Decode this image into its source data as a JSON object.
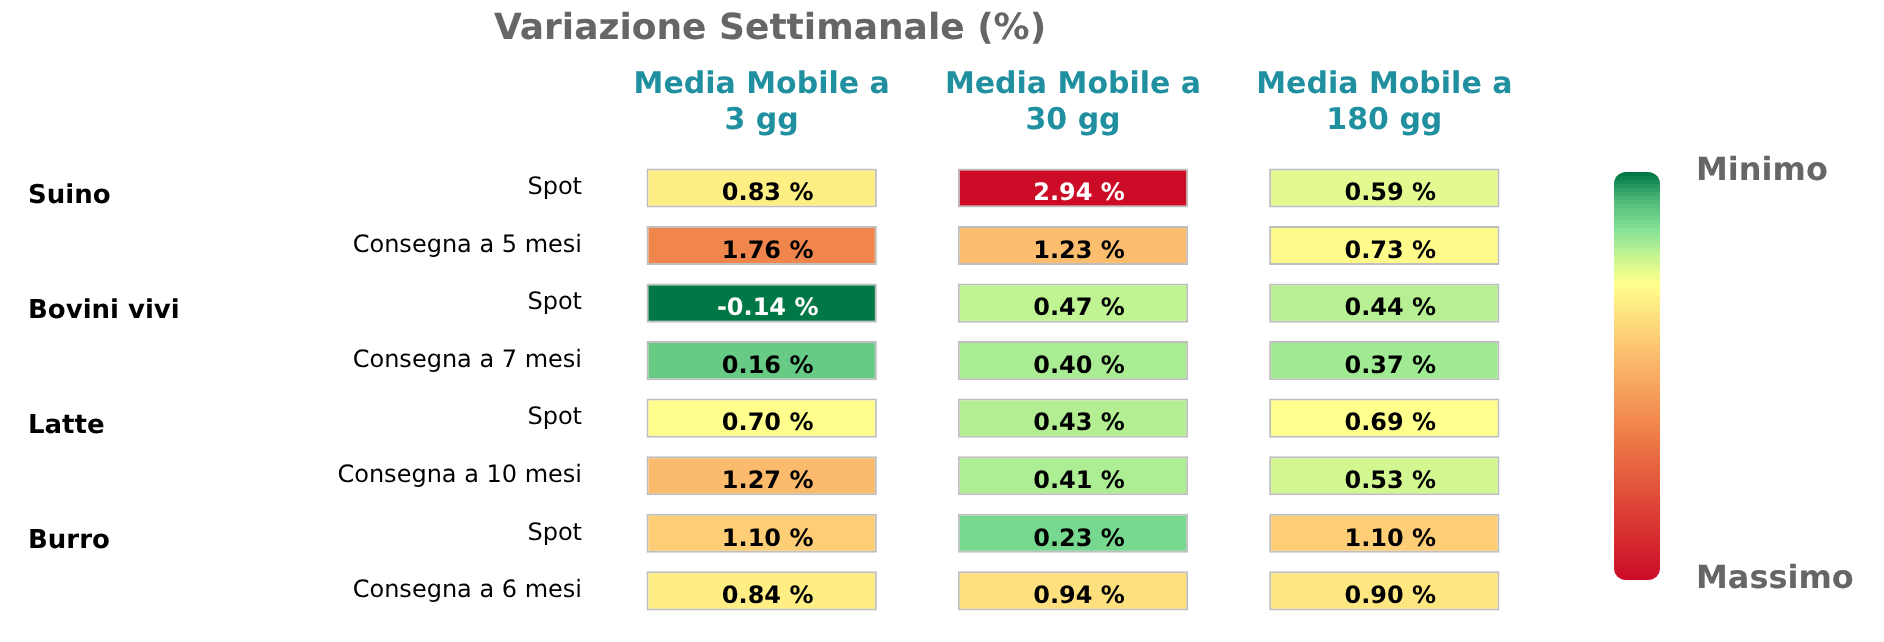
{
  "chart_data": {
    "type": "heatmap",
    "title": "Variazione Settimanale (%)",
    "categories": [
      "Media Mobile a 3 gg",
      "Media Mobile a 30 gg",
      "Media Mobile a 180 gg"
    ],
    "y_categories": [
      "Spot",
      "Consegna a 5 mesi",
      "Spot",
      "Consegna a 7 mesi",
      "Spot",
      "Consegna a 10 mesi",
      "Spot",
      "Consegna a 6 mesi"
    ],
    "y2_categories": [
      "Suino",
      null,
      "Bovini vivi",
      null,
      "Latte",
      null,
      "Burro",
      null
    ],
    "cells": [
      [
        0.83,
        2.94,
        0.59
      ],
      [
        1.76,
        1.23,
        0.73
      ],
      [
        -0.14,
        0.47,
        0.44
      ],
      [
        0.16,
        0.4,
        0.37
      ],
      [
        0.7,
        0.43,
        0.69
      ],
      [
        1.27,
        0.41,
        0.53
      ],
      [
        1.1,
        0.23,
        1.1
      ],
      [
        0.84,
        0.94,
        0.9
      ]
    ],
    "cell_labels": [
      [
        "0.83 %",
        "2.94 %",
        "0.59 %"
      ],
      [
        "1.76 %",
        "1.23 %",
        "0.73 %"
      ],
      [
        "-0.14 %",
        "0.47 %",
        "0.44 %"
      ],
      [
        "0.16 %",
        "0.40 %",
        "0.37 %"
      ],
      [
        "0.70 %",
        "0.43 %",
        "0.69 %"
      ],
      [
        "1.27 %",
        "0.41 %",
        "0.53 %"
      ],
      [
        "1.10 %",
        "0.23 %",
        "1.10 %"
      ],
      [
        "0.84 %",
        "0.94 %",
        "0.90 %"
      ]
    ],
    "clim": [
      -0.14,
      2.94
    ],
    "cticks": [
      {
        "value": -0.14,
        "label": "Minimo"
      },
      {
        "value": 2.94,
        "label": "Massimo"
      }
    ]
  }
}
